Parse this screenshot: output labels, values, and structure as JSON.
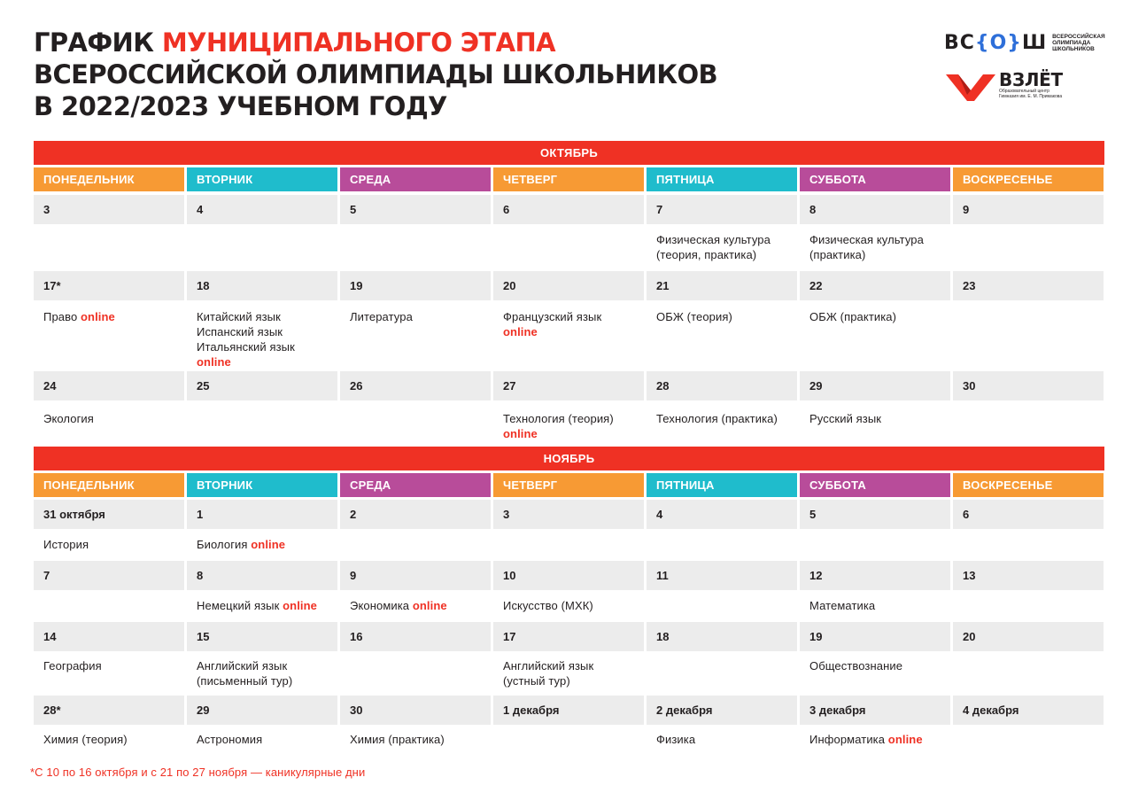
{
  "header": {
    "title_line1_black": "ГРАФИК ",
    "title_line1_red": "МУНИЦИПАЛЬНОГО ЭТАПА",
    "title_line2": "ВСЕРОССИЙСКОЙ ОЛИМПИАДЫ ШКОЛЬНИКОВ",
    "title_line3": "В 2022/2023 УЧЕБНОМ ГОДУ"
  },
  "logos": {
    "vsosh_word_left": "ВС",
    "vsosh_word_mid": "{О}",
    "vsosh_word_right": "Ш",
    "vsosh_sub": "Всероссийская олимпиада школьников",
    "vzlet_name": "ВЗЛЁТ",
    "vzlet_sub": "Образовательный центр Гимназия им. Е. М. Примакова"
  },
  "weekdays": [
    "ПОНЕДЕЛЬНИК",
    "ВТОРНИК",
    "СРЕДА",
    "ЧЕТВЕРГ",
    "ПЯТНИЦА",
    "СУББОТА",
    "ВОСКРЕСЕНЬЕ"
  ],
  "online_label": "online",
  "colors": {
    "red": "#ef3124",
    "orange": "#f79a34",
    "cyan": "#1fbccc",
    "purple": "#b84c9a",
    "date_bg": "#ececec"
  },
  "months": [
    {
      "name": "ОКТЯБРЬ",
      "weeks": [
        {
          "dates": [
            "3",
            "4",
            "5",
            "6",
            "7",
            "8",
            "9"
          ],
          "subjects": [
            [],
            [],
            [],
            [],
            [
              {
                "t": "Физическая культура"
              },
              {
                "t": "(теория, практика)"
              }
            ],
            [
              {
                "t": "Физическая культура"
              },
              {
                "t": "(практика)"
              }
            ],
            []
          ]
        },
        {
          "dates": [
            "17*",
            "18",
            "19",
            "20",
            "21",
            "22",
            "23"
          ],
          "subjects": [
            [
              {
                "t": "Право ",
                "online": true
              }
            ],
            [
              {
                "t": "Китайский язык"
              },
              {
                "t": "Испанский язык"
              },
              {
                "t": "Итальянский язык"
              },
              {
                "t": "",
                "online": true
              }
            ],
            [
              {
                "t": "Литература"
              }
            ],
            [
              {
                "t": "Французский язык"
              },
              {
                "t": "",
                "online": true
              }
            ],
            [
              {
                "t": "ОБЖ (теория)"
              }
            ],
            [
              {
                "t": "ОБЖ (практика)"
              }
            ],
            []
          ]
        },
        {
          "dates": [
            "24",
            "25",
            "26",
            "27",
            "28",
            "29",
            "30"
          ],
          "subjects": [
            [
              {
                "t": "Экология"
              }
            ],
            [],
            [],
            [
              {
                "t": "Технология (теория)"
              },
              {
                "t": "",
                "online": true
              }
            ],
            [
              {
                "t": "Технология (практика)"
              }
            ],
            [
              {
                "t": "Русский язык"
              }
            ],
            []
          ]
        }
      ]
    },
    {
      "name": "НОЯБРЬ",
      "weeks": [
        {
          "dates": [
            "31 октября",
            "1",
            "2",
            "3",
            "4",
            "5",
            "6"
          ],
          "subjects": [
            [
              {
                "t": "История"
              }
            ],
            [
              {
                "t": "Биология ",
                "online": true
              }
            ],
            [],
            [],
            [],
            [],
            []
          ]
        },
        {
          "dates": [
            "7",
            "8",
            "9",
            "10",
            "11",
            "12",
            "13"
          ],
          "subjects": [
            [],
            [
              {
                "t": "Немецкий язык ",
                "online": true
              }
            ],
            [
              {
                "t": "Экономика ",
                "online": true
              }
            ],
            [
              {
                "t": "Искусство (МХК)"
              }
            ],
            [],
            [
              {
                "t": "Математика"
              }
            ],
            []
          ]
        },
        {
          "dates": [
            "14",
            "15",
            "16",
            "17",
            "18",
            "19",
            "20"
          ],
          "subjects": [
            [
              {
                "t": "География"
              }
            ],
            [
              {
                "t": "Английский язык"
              },
              {
                "t": "(письменный тур)"
              }
            ],
            [],
            [
              {
                "t": "Английский язык"
              },
              {
                "t": "(устный тур)"
              }
            ],
            [],
            [
              {
                "t": "Обществознание"
              }
            ],
            []
          ]
        },
        {
          "dates": [
            "28*",
            "29",
            "30",
            "1 декабря",
            "2 декабря",
            "3 декабря",
            "4 декабря"
          ],
          "subjects": [
            [
              {
                "t": "Химия (теория)"
              }
            ],
            [
              {
                "t": "Астрономия"
              }
            ],
            [
              {
                "t": "Химия (практика)"
              }
            ],
            [],
            [
              {
                "t": "Физика"
              }
            ],
            [
              {
                "t": "Информатика ",
                "online": true
              }
            ],
            []
          ]
        }
      ]
    }
  ],
  "footnote": "*С 10 по 16 октября и с 21 по 27 ноября — каникулярные дни"
}
